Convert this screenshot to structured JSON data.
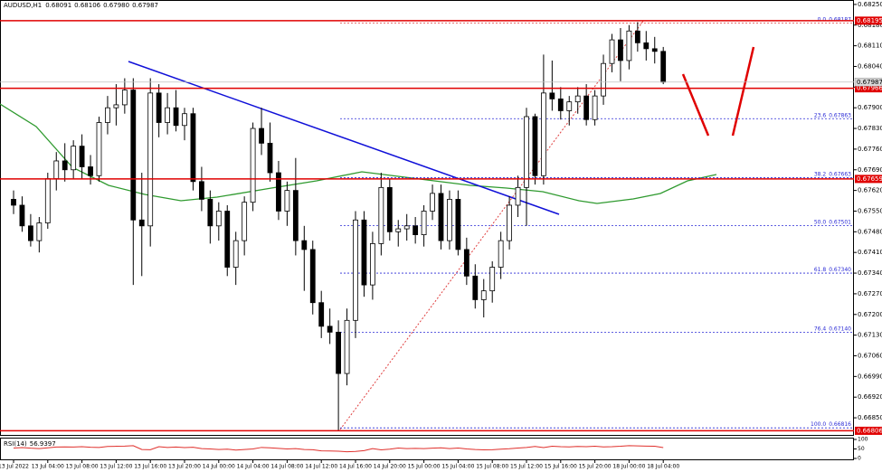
{
  "chart_data": {
    "type": "candlestick",
    "header": {
      "symbol": "AUDUSD,H1",
      "ohlc": [
        0.68091,
        0.68106,
        {
          "value": 0.6798,
          "label": "0.67980"
        },
        0.67987
      ]
    },
    "categories": [
      "13 Jul 2022",
      null,
      null,
      null,
      "13 Jul 04:00",
      null,
      null,
      null,
      "13 Jul 08:00",
      null,
      null,
      null,
      "13 Jul 12:00",
      null,
      null,
      null,
      "13 Jul 16:00",
      null,
      null,
      null,
      "13 Jul 20:00",
      null,
      null,
      null,
      "14 Jul 00:00",
      null,
      null,
      null,
      "14 Jul 04:00",
      null,
      null,
      null,
      "14 Jul 08:00",
      null,
      null,
      null,
      "14 Jul 12:00",
      null,
      null,
      null,
      "14 Jul 16:00",
      null,
      null,
      null,
      "14 Jul 20:00",
      null,
      null,
      null,
      "15 Jul 00:00",
      null,
      null,
      null,
      "15 Jul 04:00",
      null,
      null,
      null,
      "15 Jul 08:00",
      null,
      null,
      null,
      "15 Jul 12:00",
      null,
      null,
      null,
      "15 Jul 16:00",
      null,
      null,
      null,
      "15 Jul 20:00",
      null,
      null,
      null,
      "18 Jul 00:00",
      null,
      null,
      null,
      "18 Jul 04:00"
    ],
    "open": [
      0.6759,
      0.6757,
      0.675,
      0.6745,
      0.6751,
      0.6766,
      0.6772,
      0.6769,
      0.6777,
      0.677,
      0.6767,
      0.6785,
      0.679,
      0.6791,
      0.6796,
      0.6752,
      0.675,
      0.6795,
      0.6785,
      0.679,
      0.6784,
      0.6788,
      0.6765,
      0.6759,
      0.675,
      0.6755,
      0.6736,
      0.6745,
      0.6758,
      0.6783,
      0.6778,
      0.6768,
      0.6755,
      0.6762,
      0.6745,
      0.6742,
      0.6724,
      0.6716,
      0.6714,
      0.67,
      0.6718,
      0.6752,
      0.673,
      0.6744,
      0.6763,
      0.6748,
      0.6749,
      0.675,
      0.6747,
      0.6755,
      0.6761,
      0.6745,
      0.6759,
      0.6742,
      0.6733,
      0.6725,
      0.6728,
      0.6736,
      0.6745,
      0.6757,
      0.6763,
      0.6787,
      0.6767,
      0.6795,
      0.6793,
      0.6789,
      0.6792,
      0.6794,
      0.6786,
      0.6794,
      0.6805,
      0.6813,
      0.6806,
      0.6816,
      0.6812,
      0.681,
      0.68091
    ],
    "high": [
      0.6762,
      0.676,
      0.6754,
      0.6753,
      0.6768,
      0.6775,
      0.6778,
      0.6779,
      0.6781,
      0.6774,
      0.6787,
      0.6794,
      0.6798,
      0.68,
      0.68,
      0.6768,
      0.68,
      0.6798,
      0.6795,
      0.6796,
      0.679,
      0.679,
      0.677,
      0.6762,
      0.6758,
      0.6757,
      0.6748,
      0.676,
      0.6785,
      0.679,
      0.6785,
      0.6772,
      0.6765,
      0.6773,
      0.675,
      0.6745,
      0.6728,
      0.6722,
      0.6718,
      0.6722,
      0.6755,
      0.6755,
      0.6748,
      0.6768,
      0.6766,
      0.6752,
      0.6754,
      0.6753,
      0.6757,
      0.6764,
      0.6764,
      0.6762,
      0.6762,
      0.6746,
      0.6737,
      0.6732,
      0.6738,
      0.6748,
      0.676,
      0.6767,
      0.679,
      0.6788,
      0.6808,
      0.6806,
      0.6797,
      0.6794,
      0.6797,
      0.6798,
      0.6796,
      0.6808,
      0.6815,
      0.6817,
      0.6818,
      0.6819,
      0.6816,
      0.6814,
      0.68106
    ],
    "low": [
      0.6754,
      0.6748,
      0.6743,
      0.6741,
      0.6749,
      0.6762,
      0.6765,
      0.6766,
      0.6766,
      0.6764,
      0.6765,
      0.6781,
      0.6784,
      0.6788,
      0.673,
      0.6733,
      0.6743,
      0.678,
      0.6781,
      0.6782,
      0.6779,
      0.6762,
      0.6755,
      0.6744,
      0.6745,
      0.6733,
      0.673,
      0.674,
      0.6755,
      0.6774,
      0.6765,
      0.6752,
      0.675,
      0.674,
      0.6728,
      0.672,
      0.6712,
      0.671,
      0.66806,
      0.6696,
      0.6712,
      0.6726,
      0.6725,
      0.674,
      0.6745,
      0.6743,
      0.6745,
      0.6744,
      0.6743,
      0.6752,
      0.6742,
      0.6742,
      0.674,
      0.673,
      0.6722,
      0.6719,
      0.6724,
      0.6732,
      0.6742,
      0.6753,
      0.675,
      0.6764,
      0.6764,
      0.6789,
      0.6786,
      0.6784,
      0.6788,
      0.6784,
      0.6784,
      0.6791,
      0.6802,
      0.6799,
      0.6803,
      0.6809,
      0.6806,
      0.6805,
      0.6798
    ],
    "close": [
      0.6757,
      0.675,
      0.6745,
      0.6751,
      0.6766,
      0.6772,
      0.6769,
      0.6777,
      0.677,
      0.6767,
      0.6785,
      0.679,
      0.6791,
      0.6796,
      0.6752,
      0.675,
      0.6795,
      0.6785,
      0.679,
      0.6784,
      0.6788,
      0.6765,
      0.6759,
      0.675,
      0.6755,
      0.6736,
      0.6745,
      0.6758,
      0.6783,
      0.6778,
      0.6768,
      0.6755,
      0.6762,
      0.6745,
      0.6742,
      0.6724,
      0.6716,
      0.6714,
      0.67,
      0.6718,
      0.6752,
      0.673,
      0.6744,
      0.6763,
      0.6748,
      0.6749,
      0.675,
      0.6747,
      0.6755,
      0.6761,
      0.6745,
      0.6759,
      0.6742,
      0.6733,
      0.6725,
      0.6728,
      0.6736,
      0.6745,
      0.6757,
      0.6763,
      0.6787,
      0.6767,
      0.6795,
      0.6793,
      0.6789,
      0.6792,
      0.6794,
      0.6786,
      0.6794,
      0.6805,
      0.6813,
      0.6806,
      0.6816,
      0.6812,
      0.681,
      0.68091,
      0.67987
    ],
    "bull_color": "#ffffff",
    "bear_color": "#000000",
    "ylim": [
      0.66792,
      0.68265
    ],
    "yticks": [
      {
        "value": 0.6825,
        "label": "0.68250"
      },
      {
        "value": 0.6818,
        "label": "0.68180"
      },
      {
        "value": 0.6811,
        "label": "0.68110"
      },
      {
        "value": 0.6804,
        "label": "0.68040"
      },
      {
        "value": 0.6797,
        "label": "0.67970"
      },
      {
        "value": 0.679,
        "label": "0.67900"
      },
      {
        "value": 0.6783,
        "label": "0.67830"
      },
      {
        "value": 0.6776,
        "label": "0.67760"
      },
      {
        "value": 0.6769,
        "label": "0.67690"
      },
      {
        "value": 0.6762,
        "label": "0.67620"
      },
      {
        "value": 0.6755,
        "label": "0.67550"
      },
      {
        "value": 0.6748,
        "label": "0.67480"
      },
      {
        "value": 0.6741,
        "label": "0.67410"
      },
      {
        "value": 0.6734,
        "label": "0.67340"
      },
      {
        "value": 0.6727,
        "label": "0.67270"
      },
      {
        "value": 0.672,
        "label": "0.67200"
      },
      {
        "value": 0.6713,
        "label": "0.67130"
      },
      {
        "value": 0.6706,
        "label": "0.67060"
      },
      {
        "value": 0.6699,
        "label": "0.66990"
      },
      {
        "value": 0.6692,
        "label": "0.66920"
      },
      {
        "value": 0.6685,
        "label": "0.66850"
      }
    ],
    "levels": [
      0.68195,
      0.67966,
      0.67659,
      0.66806
    ],
    "level_color": "#e00000",
    "current_price": 0.67987,
    "fibonacci": [
      {
        "ratio": "0.0",
        "price": 0.68187
      },
      {
        "ratio": "23.6",
        "price": 0.67863
      },
      {
        "ratio": "38.2",
        "price": 0.67663
      },
      {
        "ratio": "50.0",
        "price": 0.67501
      },
      {
        "ratio": "61.8",
        "price": {
          "value": 0.6734,
          "label": "0.67340"
        }
      },
      {
        "ratio": "76.4",
        "price": {
          "value": 0.6714,
          "label": "0.67140"
        }
      },
      {
        "ratio": "100.0",
        "price": 0.66816
      }
    ],
    "fib_color": "#2b2bd6",
    "rsi": {
      "name": "RSI(14)",
      "value": 56.9397,
      "color": "#e0302c",
      "values": [
        55,
        57,
        54,
        52,
        56,
        60,
        61,
        60,
        62,
        59,
        58,
        63,
        64,
        65,
        67,
        47,
        46,
        62,
        58,
        60,
        57,
        59,
        52,
        50,
        47,
        49,
        44,
        47,
        50,
        58,
        56,
        53,
        50,
        52,
        47,
        46,
        40,
        39,
        38,
        35,
        37,
        41,
        52,
        45,
        49,
        55,
        52,
        53,
        52,
        54,
        56,
        52,
        55,
        50,
        47,
        45,
        46,
        49,
        51,
        55,
        58,
        63,
        57,
        64,
        62,
        61,
        63,
        62,
        64,
        61,
        62,
        64,
        67,
        66,
        65,
        64,
        56.9397
      ],
      "ylim": [
        0,
        100
      ],
      "yticks": [
        100,
        50,
        0
      ]
    }
  }
}
